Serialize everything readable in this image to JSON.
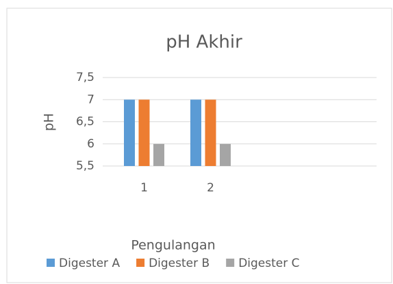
{
  "chart_data": {
    "type": "bar",
    "title": "pH Akhir",
    "x_label": "Pengulangan",
    "y_label": "pH",
    "categories": [
      "1",
      "2",
      null,
      null
    ],
    "series": [
      {
        "name": "Digester A",
        "color": "#5b9bd5",
        "values": [
          7,
          7,
          null,
          null
        ]
      },
      {
        "name": "Digester B",
        "color": "#ed7d31",
        "values": [
          7,
          7,
          null,
          null
        ]
      },
      {
        "name": "Digester C",
        "color": "#a5a5a5",
        "values": [
          6,
          6,
          null,
          null
        ]
      }
    ],
    "ylim": [
      5.5,
      7.5
    ],
    "yticks": [
      {
        "value": 5.5,
        "label": "5,5"
      },
      6,
      {
        "value": 6.5,
        "label": "6,5"
      },
      7,
      {
        "value": 7.5,
        "label": "7,5"
      }
    ],
    "grid": true,
    "legend": "bottom"
  }
}
